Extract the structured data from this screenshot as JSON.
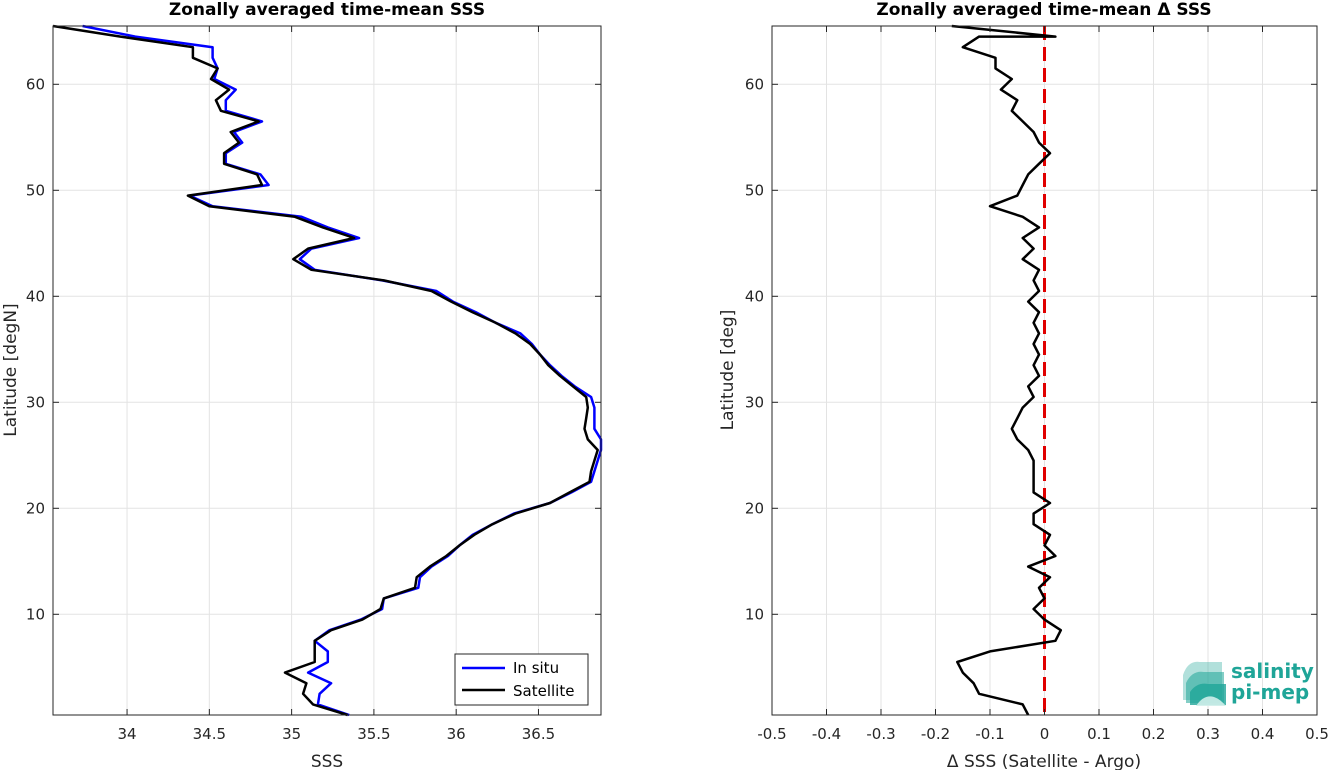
{
  "chart_data": [
    {
      "type": "line",
      "title": "Zonally averaged time-mean SSS",
      "xlabel": "SSS",
      "ylabel": "Latitude [degN]",
      "xlim": [
        33.55,
        36.88
      ],
      "ylim": [
        0.5,
        65.5
      ],
      "xticks": [
        34,
        34.5,
        35,
        35.5,
        36,
        36.5
      ],
      "xtick_labels": [
        "34",
        "34.5",
        "35",
        "35.5",
        "36",
        "36.5"
      ],
      "yticks": [
        10,
        20,
        30,
        40,
        50,
        60
      ],
      "ytick_labels": [
        "10",
        "20",
        "30",
        "40",
        "50",
        "60"
      ],
      "grid": true,
      "legend": "bottom-right",
      "series": [
        {
          "name": "In situ",
          "color": "#0000ff",
          "points": [
            [
              35.35,
              0.5
            ],
            [
              35.16,
              1.5
            ],
            [
              35.17,
              2.5
            ],
            [
              35.24,
              3.5
            ],
            [
              35.1,
              4.5
            ],
            [
              35.22,
              5.5
            ],
            [
              35.22,
              6.5
            ],
            [
              35.14,
              7.5
            ],
            [
              35.23,
              8.5
            ],
            [
              35.42,
              9.5
            ],
            [
              35.55,
              10.5
            ],
            [
              35.56,
              11.5
            ],
            [
              35.77,
              12.5
            ],
            [
              35.78,
              13.5
            ],
            [
              35.85,
              14.5
            ],
            [
              35.95,
              15.5
            ],
            [
              36.02,
              16.5
            ],
            [
              36.1,
              17.5
            ],
            [
              36.22,
              18.5
            ],
            [
              36.35,
              19.5
            ],
            [
              36.57,
              20.5
            ],
            [
              36.7,
              21.5
            ],
            [
              36.82,
              22.5
            ],
            [
              36.84,
              23.5
            ],
            [
              36.86,
              24.5
            ],
            [
              36.88,
              25.5
            ],
            [
              36.88,
              26.5
            ],
            [
              36.84,
              27.5
            ],
            [
              36.84,
              28.5
            ],
            [
              36.84,
              29.5
            ],
            [
              36.82,
              30.5
            ],
            [
              36.72,
              31.5
            ],
            [
              36.64,
              32.5
            ],
            [
              36.57,
              33.5
            ],
            [
              36.51,
              34.5
            ],
            [
              36.46,
              35.5
            ],
            [
              36.39,
              36.5
            ],
            [
              36.24,
              37.5
            ],
            [
              36.12,
              38.5
            ],
            [
              35.98,
              39.5
            ],
            [
              35.88,
              40.5
            ],
            [
              35.55,
              41.5
            ],
            [
              35.14,
              42.5
            ],
            [
              35.05,
              43.5
            ],
            [
              35.12,
              44.5
            ],
            [
              35.41,
              45.5
            ],
            [
              35.22,
              46.5
            ],
            [
              35.06,
              47.5
            ],
            [
              34.52,
              48.5
            ],
            [
              34.38,
              49.5
            ],
            [
              34.86,
              50.5
            ],
            [
              34.81,
              51.5
            ],
            [
              34.6,
              52.5
            ],
            [
              34.6,
              53.5
            ],
            [
              34.7,
              54.5
            ],
            [
              34.65,
              55.5
            ],
            [
              34.82,
              56.5
            ],
            [
              34.6,
              57.5
            ],
            [
              34.6,
              58.5
            ],
            [
              34.66,
              59.5
            ],
            [
              34.53,
              60.5
            ],
            [
              34.55,
              61.5
            ],
            [
              34.52,
              62.5
            ],
            [
              34.52,
              63.5
            ],
            [
              34.05,
              64.5
            ],
            [
              33.73,
              65.5
            ]
          ]
        },
        {
          "name": "Satellite",
          "color": "#000000",
          "points": [
            [
              35.34,
              0.5
            ],
            [
              35.13,
              1.5
            ],
            [
              35.07,
              2.5
            ],
            [
              35.09,
              3.5
            ],
            [
              34.96,
              4.5
            ],
            [
              35.14,
              5.5
            ],
            [
              35.14,
              6.5
            ],
            [
              35.14,
              7.5
            ],
            [
              35.24,
              8.5
            ],
            [
              35.43,
              9.5
            ],
            [
              35.54,
              10.5
            ],
            [
              35.56,
              11.5
            ],
            [
              35.75,
              12.5
            ],
            [
              35.76,
              13.5
            ],
            [
              35.84,
              14.5
            ],
            [
              35.94,
              15.5
            ],
            [
              36.02,
              16.5
            ],
            [
              36.11,
              17.5
            ],
            [
              36.22,
              18.5
            ],
            [
              36.36,
              19.5
            ],
            [
              36.57,
              20.5
            ],
            [
              36.69,
              21.5
            ],
            [
              36.81,
              22.5
            ],
            [
              36.82,
              23.5
            ],
            [
              36.84,
              24.5
            ],
            [
              36.86,
              25.5
            ],
            [
              36.8,
              26.5
            ],
            [
              36.78,
              27.5
            ],
            [
              36.79,
              28.5
            ],
            [
              36.8,
              29.5
            ],
            [
              36.79,
              30.5
            ],
            [
              36.71,
              31.5
            ],
            [
              36.63,
              32.5
            ],
            [
              36.56,
              33.5
            ],
            [
              36.51,
              34.5
            ],
            [
              36.45,
              35.5
            ],
            [
              36.36,
              36.5
            ],
            [
              36.24,
              37.5
            ],
            [
              36.1,
              38.5
            ],
            [
              35.97,
              39.5
            ],
            [
              35.85,
              40.5
            ],
            [
              35.56,
              41.5
            ],
            [
              35.12,
              42.5
            ],
            [
              35.01,
              43.5
            ],
            [
              35.1,
              44.5
            ],
            [
              35.38,
              45.5
            ],
            [
              35.19,
              46.5
            ],
            [
              35.02,
              47.5
            ],
            [
              34.5,
              48.5
            ],
            [
              34.37,
              49.5
            ],
            [
              34.82,
              50.5
            ],
            [
              34.79,
              51.5
            ],
            [
              34.59,
              52.5
            ],
            [
              34.59,
              53.5
            ],
            [
              34.68,
              54.5
            ],
            [
              34.63,
              55.5
            ],
            [
              34.8,
              56.5
            ],
            [
              34.57,
              57.5
            ],
            [
              34.54,
              58.5
            ],
            [
              34.62,
              59.5
            ],
            [
              34.51,
              60.5
            ],
            [
              34.55,
              61.5
            ],
            [
              34.4,
              62.5
            ],
            [
              34.4,
              63.5
            ],
            [
              33.96,
              64.5
            ],
            [
              33.55,
              65.5
            ]
          ]
        }
      ]
    },
    {
      "type": "line",
      "title": "Zonally averaged time-mean Δ SSS",
      "xlabel": "Δ SSS (Satellite - Argo)",
      "ylabel": "Latitude [deg]",
      "xlim": [
        -0.5,
        0.5
      ],
      "ylim": [
        0.5,
        65.5
      ],
      "xticks": [
        -0.5,
        -0.4,
        -0.3,
        -0.2,
        -0.1,
        0,
        0.1,
        0.2,
        0.3,
        0.4,
        0.5
      ],
      "xtick_labels": [
        "-0.5",
        "-0.4",
        "-0.3",
        "-0.2",
        "-0.1",
        "0",
        "0.1",
        "0.2",
        "0.3",
        "0.4",
        "0.5"
      ],
      "yticks": [
        10,
        20,
        30,
        40,
        50,
        60
      ],
      "ytick_labels": [
        "10",
        "20",
        "30",
        "40",
        "50",
        "60"
      ],
      "grid": true,
      "reference_line": {
        "x": 0,
        "color": "#e00000",
        "style": "dashed"
      },
      "series": [
        {
          "color": "#000000",
          "points": [
            [
              -0.03,
              0.5
            ],
            [
              -0.04,
              1.5
            ],
            [
              -0.12,
              2.5
            ],
            [
              -0.13,
              3.5
            ],
            [
              -0.15,
              4.5
            ],
            [
              -0.16,
              5.5
            ],
            [
              -0.1,
              6.5
            ],
            [
              0.02,
              7.5
            ],
            [
              0.03,
              8.5
            ],
            [
              0.0,
              9.5
            ],
            [
              -0.02,
              10.5
            ],
            [
              0.0,
              11.5
            ],
            [
              -0.01,
              12.5
            ],
            [
              0.01,
              13.5
            ],
            [
              -0.03,
              14.5
            ],
            [
              0.02,
              15.5
            ],
            [
              0.0,
              16.5
            ],
            [
              0.01,
              17.5
            ],
            [
              -0.02,
              18.5
            ],
            [
              -0.02,
              19.5
            ],
            [
              0.01,
              20.5
            ],
            [
              -0.02,
              21.5
            ],
            [
              -0.02,
              22.5
            ],
            [
              -0.02,
              23.5
            ],
            [
              -0.02,
              24.5
            ],
            [
              -0.03,
              25.5
            ],
            [
              -0.05,
              26.5
            ],
            [
              -0.06,
              27.5
            ],
            [
              -0.05,
              28.5
            ],
            [
              -0.04,
              29.5
            ],
            [
              -0.02,
              30.5
            ],
            [
              -0.03,
              31.5
            ],
            [
              -0.01,
              32.5
            ],
            [
              -0.02,
              33.5
            ],
            [
              -0.01,
              34.5
            ],
            [
              -0.02,
              35.5
            ],
            [
              -0.01,
              36.5
            ],
            [
              -0.02,
              37.5
            ],
            [
              -0.01,
              38.5
            ],
            [
              -0.03,
              39.5
            ],
            [
              -0.01,
              40.5
            ],
            [
              -0.02,
              41.5
            ],
            [
              -0.01,
              42.5
            ],
            [
              -0.04,
              43.5
            ],
            [
              -0.02,
              44.5
            ],
            [
              -0.04,
              45.5
            ],
            [
              -0.01,
              46.5
            ],
            [
              -0.04,
              47.5
            ],
            [
              -0.1,
              48.5
            ],
            [
              -0.05,
              49.5
            ],
            [
              -0.04,
              50.5
            ],
            [
              -0.03,
              51.5
            ],
            [
              -0.01,
              52.5
            ],
            [
              0.01,
              53.5
            ],
            [
              -0.01,
              54.5
            ],
            [
              -0.02,
              55.5
            ],
            [
              -0.04,
              56.5
            ],
            [
              -0.06,
              57.5
            ],
            [
              -0.05,
              58.5
            ],
            [
              -0.08,
              59.5
            ],
            [
              -0.06,
              60.5
            ],
            [
              -0.09,
              61.5
            ],
            [
              -0.09,
              62.5
            ],
            [
              -0.15,
              63.5
            ],
            [
              -0.12,
              64.5
            ],
            [
              0.02,
              64.5
            ],
            [
              -0.17,
              65.5
            ]
          ]
        }
      ]
    }
  ],
  "legend": {
    "entries": [
      "In situ",
      "Satellite"
    ]
  },
  "logo": {
    "line1": "salinity",
    "line2": "pi-mep"
  }
}
